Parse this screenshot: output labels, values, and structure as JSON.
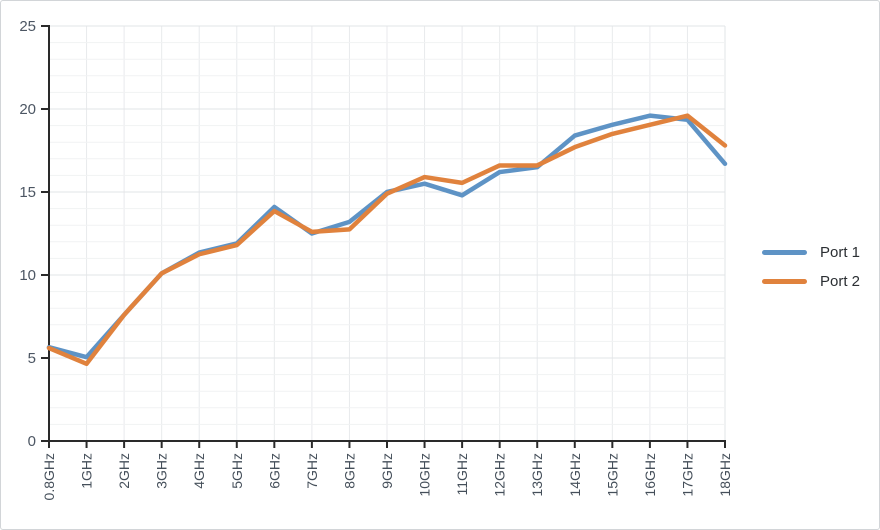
{
  "chart_data": {
    "type": "line",
    "title": "",
    "xlabel": "",
    "ylabel": "",
    "categories": [
      "0.8GHz",
      "1GHz",
      "2GHz",
      "3GHz",
      "4GHz",
      "5GHz",
      "6GHz",
      "7GHz",
      "8GHz",
      "9GHz",
      "10GHz",
      "11GHz",
      "12GHz",
      "13GHz",
      "14GHz",
      "15GHz",
      "16GHz",
      "17GHz",
      "18GHz"
    ],
    "series": [
      {
        "name": "Port 1",
        "color": "#5e93c5",
        "values": [
          5.65,
          5.05,
          7.6,
          10.1,
          11.35,
          11.9,
          14.1,
          12.5,
          13.2,
          15.0,
          15.5,
          14.8,
          16.2,
          16.5,
          18.4,
          19.05,
          19.6,
          19.35,
          16.7
        ]
      },
      {
        "name": "Port 2",
        "color": "#e0823d",
        "values": [
          5.6,
          4.65,
          7.6,
          10.1,
          11.25,
          11.8,
          13.85,
          12.6,
          12.75,
          14.9,
          15.9,
          15.55,
          16.6,
          16.6,
          17.7,
          18.5,
          19.05,
          19.6,
          17.8
        ]
      }
    ],
    "ylim": [
      0,
      25
    ],
    "y_ticks": [
      0,
      5,
      10,
      15,
      20,
      25
    ],
    "y_minor_step": 1,
    "grid": true,
    "legend_position": "right"
  },
  "style": {
    "axis_color": "#2a2a2a",
    "y_tick_label_color": "#4c5663",
    "x_tick_label_color": "#454f5a",
    "grid_major_color": "#e2e4e7",
    "grid_minor_color": "#f1f2f3",
    "grid_vertical_color": "#e8eaec",
    "line_width": 4.5
  }
}
